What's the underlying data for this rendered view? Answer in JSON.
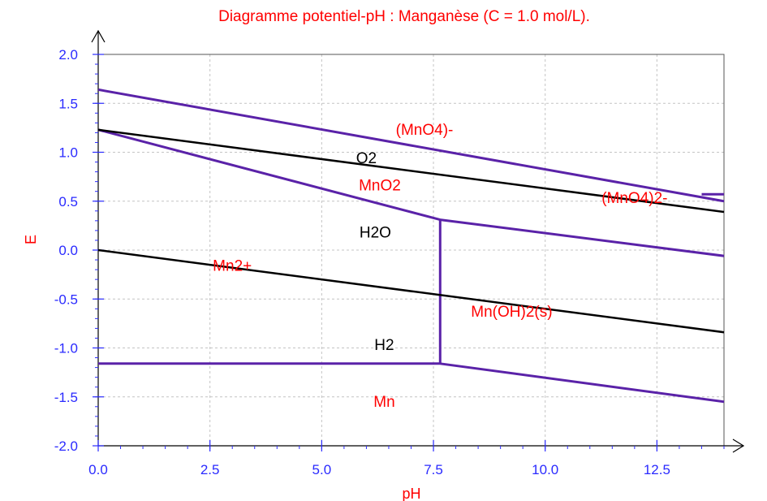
{
  "chart_data": {
    "type": "line",
    "title": "Diagramme potentiel-pH : Manganèse (C = 1.0 mol/L).",
    "xlabel": "pH",
    "ylabel": "E",
    "xlim": [
      0,
      14
    ],
    "ylim": [
      -2.0,
      2.0
    ],
    "xticks": [
      "0.0",
      "2.5",
      "5.0",
      "7.5",
      "10.0",
      "12.5"
    ],
    "yticks": [
      "2.0",
      "1.5",
      "1.0",
      "0.5",
      "0.0",
      "-0.5",
      "-1.0",
      "-1.5",
      "-2.0"
    ],
    "grid": true,
    "colors": {
      "manganese": "#5a22a8",
      "water": "#000000",
      "label_red": "#ff0000",
      "label_black": "#000000",
      "tick": "#2a2aff"
    },
    "series": [
      {
        "group": "manganese",
        "points": [
          [
            0,
            1.64
          ],
          [
            14,
            0.5
          ]
        ]
      },
      {
        "group": "manganese",
        "points": [
          [
            13.5,
            0.57
          ],
          [
            14,
            0.57
          ]
        ]
      },
      {
        "group": "manganese",
        "points": [
          [
            0,
            1.23
          ],
          [
            7.65,
            0.31
          ],
          [
            14,
            -0.06
          ]
        ]
      },
      {
        "group": "manganese",
        "points": [
          [
            7.65,
            0.31
          ],
          [
            7.65,
            -1.16
          ]
        ]
      },
      {
        "group": "manganese",
        "points": [
          [
            0,
            -1.16
          ],
          [
            7.65,
            -1.16
          ],
          [
            14,
            -1.55
          ]
        ]
      },
      {
        "group": "water",
        "points": [
          [
            0,
            1.23
          ],
          [
            14,
            0.39
          ]
        ]
      },
      {
        "group": "water",
        "points": [
          [
            0,
            0.0
          ],
          [
            14,
            -0.84
          ]
        ]
      }
    ],
    "region_labels": [
      {
        "text": "(MnO4)-",
        "x": 7.3,
        "y": 1.18,
        "color": "label_red"
      },
      {
        "text": "O2",
        "x": 6.0,
        "y": 0.89,
        "color": "label_black"
      },
      {
        "text": "MnO2",
        "x": 6.3,
        "y": 0.61,
        "color": "label_red"
      },
      {
        "text": "(MnO4)2-",
        "x": 12.0,
        "y": 0.48,
        "color": "label_red"
      },
      {
        "text": "H2O",
        "x": 6.2,
        "y": 0.13,
        "color": "label_black"
      },
      {
        "text": "Mn2+",
        "x": 3.0,
        "y": -0.21,
        "color": "label_red"
      },
      {
        "text": "Mn(OH)2(s)",
        "x": 9.25,
        "y": -0.68,
        "color": "label_red"
      },
      {
        "text": "H2",
        "x": 6.4,
        "y": -1.02,
        "color": "label_black"
      },
      {
        "text": "Mn",
        "x": 6.4,
        "y": -1.6,
        "color": "label_red"
      }
    ]
  }
}
